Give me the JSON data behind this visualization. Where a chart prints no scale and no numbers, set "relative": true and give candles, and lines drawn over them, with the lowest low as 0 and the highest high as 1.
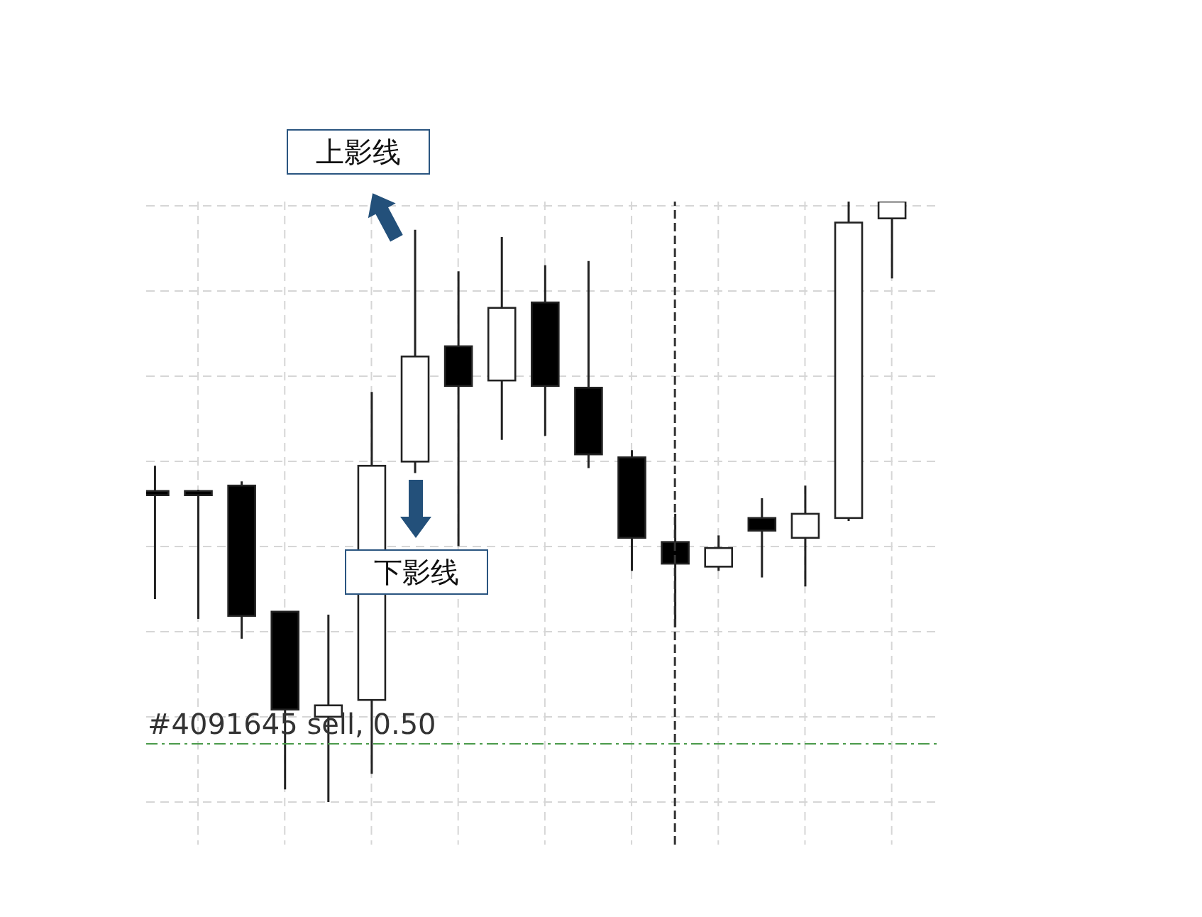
{
  "chart_data": {
    "type": "candlestick",
    "relative": true,
    "grid": true,
    "categories": [
      null,
      null,
      null,
      null,
      null,
      null,
      null,
      null,
      null,
      null,
      null,
      null,
      null,
      null,
      null,
      null,
      null,
      null
    ],
    "ohlc": [
      [
        0.518,
        0.56,
        0.338,
        0.511
      ],
      [
        0.518,
        0.52,
        0.305,
        0.511
      ],
      [
        0.527,
        0.534,
        0.272,
        0.31
      ],
      [
        0.317,
        0.317,
        0.021,
        0.154
      ],
      [
        0.142,
        0.312,
        0,
        0.161
      ],
      [
        0.17,
        0.683,
        0.047,
        0.56
      ],
      [
        0.567,
        0.953,
        0.548,
        0.742
      ],
      [
        0.759,
        0.884,
        0.426,
        0.693
      ],
      [
        0.702,
        0.941,
        0.603,
        0.823
      ],
      [
        0.832,
        0.894,
        0.61,
        0.693
      ],
      [
        0.69,
        0.901,
        0.556,
        0.579
      ],
      [
        0.574,
        0.586,
        0.385,
        0.44
      ],
      [
        0.433,
        0.48,
        0.291,
        0.397
      ],
      [
        0.392,
        0.444,
        0.385,
        0.423
      ],
      [
        0.473,
        0.506,
        0.374,
        0.452
      ],
      [
        0.44,
        0.527,
        0.359,
        0.48
      ],
      [
        0.473,
        1,
        0.468,
        0.965
      ],
      [
        0.972,
        1,
        0.872,
        1
      ]
    ],
    "ref_lines": [
      {
        "axis": "y",
        "value": 0.097,
        "label": "#4091645 sell, 0.50",
        "color": "#4a9a4a",
        "line_style": "dashed"
      }
    ],
    "annotations": [
      "上影线",
      "下影线"
    ]
  }
}
